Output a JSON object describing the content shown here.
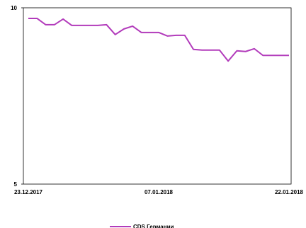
{
  "chart_data": {
    "type": "line",
    "categories": [
      "23.12.2017",
      null,
      null,
      null,
      null,
      null,
      null,
      null,
      null,
      null,
      null,
      null,
      null,
      null,
      null,
      "07.01.2018",
      null,
      null,
      null,
      null,
      null,
      null,
      null,
      null,
      null,
      null,
      null,
      null,
      null,
      null,
      "22.01.2018"
    ],
    "series": [
      {
        "name": "CDS Германии",
        "color": "#b23bbb",
        "values": [
          9.7,
          9.7,
          9.52,
          9.52,
          9.68,
          9.5,
          9.5,
          9.5,
          9.5,
          9.52,
          9.24,
          9.4,
          9.48,
          9.3,
          9.3,
          9.3,
          9.2,
          9.22,
          9.22,
          8.82,
          8.8,
          8.8,
          8.8,
          8.49,
          8.78,
          8.76,
          8.84,
          8.65,
          8.65,
          8.65,
          8.65
        ]
      }
    ],
    "ylim": [
      5,
      10
    ],
    "yticks": [
      5,
      10
    ],
    "legend": "bottom"
  }
}
